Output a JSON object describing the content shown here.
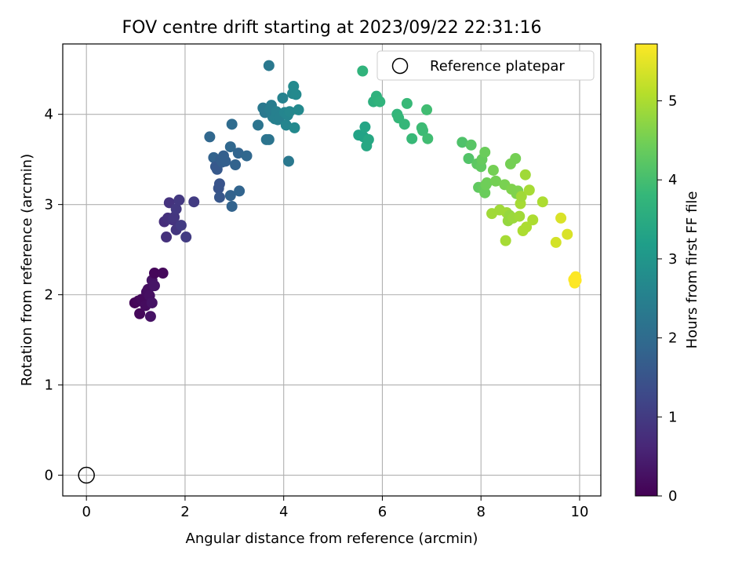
{
  "chart_data": {
    "type": "scatter",
    "title": "FOV centre drift starting at 2023/09/22 22:31:16",
    "xlabel": "Angular distance from reference (arcmin)",
    "ylabel": "Rotation from reference (arcmin)",
    "xlim": [
      -0.48,
      10.43
    ],
    "ylim": [
      -0.23,
      4.78
    ],
    "x_ticks": [
      "0",
      "2",
      "4",
      "6",
      "8",
      "10"
    ],
    "y_ticks": [
      "0",
      "1",
      "2",
      "3",
      "4"
    ],
    "grid": true,
    "legend": {
      "placement": "top-right",
      "entries": [
        "Reference platepar"
      ]
    },
    "reference_point": {
      "name": "Reference platepar",
      "x": 0,
      "y": 0,
      "marker": "hollow-circle"
    },
    "colorbar": {
      "label": "Hours from first FF file",
      "range": [
        0,
        5.72
      ],
      "ticks": [
        "0",
        "1",
        "2",
        "3",
        "4",
        "5"
      ],
      "colormap": "viridis",
      "colors": [
        "#440154",
        "#482878",
        "#3e4989",
        "#31688e",
        "#26828e",
        "#1f9e89",
        "#35b779",
        "#6ece58",
        "#b5de2b",
        "#fde725"
      ]
    },
    "points": [
      {
        "x": 0.98,
        "y": 1.91,
        "t": 0.05
      },
      {
        "x": 1.05,
        "y": 1.93,
        "t": 0.1
      },
      {
        "x": 1.08,
        "y": 1.79,
        "t": 0.12
      },
      {
        "x": 1.12,
        "y": 1.95,
        "t": 0.15
      },
      {
        "x": 1.2,
        "y": 1.88,
        "t": 0.18
      },
      {
        "x": 1.22,
        "y": 2.03,
        "t": 0.2
      },
      {
        "x": 1.25,
        "y": 2.06,
        "t": 0.22
      },
      {
        "x": 1.28,
        "y": 1.99,
        "t": 0.25
      },
      {
        "x": 1.3,
        "y": 1.76,
        "t": 0.28
      },
      {
        "x": 1.33,
        "y": 1.91,
        "t": 0.3
      },
      {
        "x": 1.33,
        "y": 2.16,
        "t": 0.3
      },
      {
        "x": 1.38,
        "y": 2.1,
        "t": 0.32
      },
      {
        "x": 1.38,
        "y": 2.24,
        "t": 0.1
      },
      {
        "x": 1.55,
        "y": 2.24,
        "t": 0.12
      },
      {
        "x": 1.58,
        "y": 2.81,
        "t": 0.75
      },
      {
        "x": 1.62,
        "y": 2.64,
        "t": 0.8
      },
      {
        "x": 1.65,
        "y": 2.85,
        "t": 0.8
      },
      {
        "x": 1.68,
        "y": 3.02,
        "t": 0.85
      },
      {
        "x": 1.75,
        "y": 2.83,
        "t": 0.85
      },
      {
        "x": 1.78,
        "y": 2.86,
        "t": 0.9
      },
      {
        "x": 1.82,
        "y": 2.72,
        "t": 0.9
      },
      {
        "x": 1.82,
        "y": 2.95,
        "t": 0.95
      },
      {
        "x": 1.88,
        "y": 3.05,
        "t": 0.95
      },
      {
        "x": 1.92,
        "y": 2.77,
        "t": 1.0
      },
      {
        "x": 2.02,
        "y": 2.64,
        "t": 1.0
      },
      {
        "x": 2.18,
        "y": 3.03,
        "t": 1.0
      },
      {
        "x": 2.5,
        "y": 3.75,
        "t": 1.9
      },
      {
        "x": 2.58,
        "y": 3.52,
        "t": 1.8
      },
      {
        "x": 2.62,
        "y": 3.42,
        "t": 1.6
      },
      {
        "x": 2.65,
        "y": 3.39,
        "t": 1.6
      },
      {
        "x": 2.68,
        "y": 3.18,
        "t": 1.5
      },
      {
        "x": 2.7,
        "y": 3.23,
        "t": 1.5
      },
      {
        "x": 2.7,
        "y": 3.08,
        "t": 1.55
      },
      {
        "x": 2.72,
        "y": 3.5,
        "t": 1.7
      },
      {
        "x": 2.75,
        "y": 3.47,
        "t": 1.7
      },
      {
        "x": 2.78,
        "y": 3.54,
        "t": 1.75
      },
      {
        "x": 2.82,
        "y": 3.48,
        "t": 1.75
      },
      {
        "x": 2.92,
        "y": 3.64,
        "t": 1.9
      },
      {
        "x": 2.92,
        "y": 3.1,
        "t": 1.8
      },
      {
        "x": 2.95,
        "y": 3.89,
        "t": 2.0
      },
      {
        "x": 2.95,
        "y": 2.98,
        "t": 1.8
      },
      {
        "x": 3.02,
        "y": 3.44,
        "t": 1.8
      },
      {
        "x": 3.08,
        "y": 3.57,
        "t": 1.85
      },
      {
        "x": 3.1,
        "y": 3.15,
        "t": 1.85
      },
      {
        "x": 3.25,
        "y": 3.54,
        "t": 1.9
      },
      {
        "x": 3.48,
        "y": 3.88,
        "t": 2.2
      },
      {
        "x": 3.58,
        "y": 4.07,
        "t": 2.3
      },
      {
        "x": 3.62,
        "y": 4.02,
        "t": 2.3
      },
      {
        "x": 3.65,
        "y": 3.72,
        "t": 2.2
      },
      {
        "x": 3.7,
        "y": 4.54,
        "t": 2.3
      },
      {
        "x": 3.7,
        "y": 3.72,
        "t": 2.2
      },
      {
        "x": 3.72,
        "y": 4.05,
        "t": 2.4
      },
      {
        "x": 3.75,
        "y": 4.1,
        "t": 2.4
      },
      {
        "x": 3.78,
        "y": 3.97,
        "t": 2.4
      },
      {
        "x": 3.82,
        "y": 3.95,
        "t": 2.5
      },
      {
        "x": 3.85,
        "y": 4.03,
        "t": 2.5
      },
      {
        "x": 3.88,
        "y": 3.94,
        "t": 2.5
      },
      {
        "x": 3.92,
        "y": 3.97,
        "t": 2.5
      },
      {
        "x": 3.98,
        "y": 4.18,
        "t": 2.55
      },
      {
        "x": 4.02,
        "y": 4.02,
        "t": 2.6
      },
      {
        "x": 4.05,
        "y": 3.88,
        "t": 2.6
      },
      {
        "x": 4.08,
        "y": 3.99,
        "t": 2.6
      },
      {
        "x": 4.1,
        "y": 3.48,
        "t": 2.3
      },
      {
        "x": 4.12,
        "y": 4.03,
        "t": 2.65
      },
      {
        "x": 4.18,
        "y": 4.23,
        "t": 2.65
      },
      {
        "x": 4.2,
        "y": 4.31,
        "t": 2.7
      },
      {
        "x": 4.22,
        "y": 3.85,
        "t": 2.7
      },
      {
        "x": 4.25,
        "y": 4.22,
        "t": 2.7
      },
      {
        "x": 4.3,
        "y": 4.05,
        "t": 2.7
      },
      {
        "x": 5.52,
        "y": 3.77,
        "t": 3.3
      },
      {
        "x": 5.6,
        "y": 4.48,
        "t": 3.7
      },
      {
        "x": 5.62,
        "y": 3.75,
        "t": 3.3
      },
      {
        "x": 5.65,
        "y": 3.86,
        "t": 3.35
      },
      {
        "x": 5.68,
        "y": 3.65,
        "t": 3.4
      },
      {
        "x": 5.72,
        "y": 3.72,
        "t": 3.4
      },
      {
        "x": 5.82,
        "y": 4.14,
        "t": 3.6
      },
      {
        "x": 5.88,
        "y": 4.2,
        "t": 3.65
      },
      {
        "x": 5.92,
        "y": 4.15,
        "t": 3.65
      },
      {
        "x": 5.95,
        "y": 4.14,
        "t": 3.7
      },
      {
        "x": 6.3,
        "y": 4.0,
        "t": 3.75
      },
      {
        "x": 6.33,
        "y": 3.96,
        "t": 3.8
      },
      {
        "x": 6.45,
        "y": 3.89,
        "t": 3.8
      },
      {
        "x": 6.5,
        "y": 4.12,
        "t": 3.85
      },
      {
        "x": 6.6,
        "y": 3.73,
        "t": 3.85
      },
      {
        "x": 6.8,
        "y": 3.85,
        "t": 3.9
      },
      {
        "x": 6.82,
        "y": 3.82,
        "t": 3.9
      },
      {
        "x": 6.9,
        "y": 4.05,
        "t": 3.95
      },
      {
        "x": 6.92,
        "y": 3.73,
        "t": 3.95
      },
      {
        "x": 7.62,
        "y": 3.69,
        "t": 4.1
      },
      {
        "x": 7.75,
        "y": 3.51,
        "t": 4.15
      },
      {
        "x": 7.8,
        "y": 3.66,
        "t": 4.2
      },
      {
        "x": 7.92,
        "y": 3.45,
        "t": 4.25
      },
      {
        "x": 7.95,
        "y": 3.19,
        "t": 4.3
      },
      {
        "x": 8.0,
        "y": 3.42,
        "t": 4.3
      },
      {
        "x": 8.02,
        "y": 3.5,
        "t": 4.35
      },
      {
        "x": 8.05,
        "y": 3.17,
        "t": 4.35
      },
      {
        "x": 8.08,
        "y": 3.58,
        "t": 4.4
      },
      {
        "x": 8.08,
        "y": 3.13,
        "t": 4.4
      },
      {
        "x": 8.1,
        "y": 3.22,
        "t": 4.45
      },
      {
        "x": 8.12,
        "y": 3.24,
        "t": 4.45
      },
      {
        "x": 8.22,
        "y": 2.9,
        "t": 4.9
      },
      {
        "x": 8.25,
        "y": 3.38,
        "t": 4.5
      },
      {
        "x": 8.3,
        "y": 3.26,
        "t": 4.5
      },
      {
        "x": 8.38,
        "y": 2.94,
        "t": 4.9
      },
      {
        "x": 8.48,
        "y": 3.22,
        "t": 4.55
      },
      {
        "x": 8.5,
        "y": 2.6,
        "t": 4.95
      },
      {
        "x": 8.52,
        "y": 2.91,
        "t": 4.9
      },
      {
        "x": 8.55,
        "y": 2.82,
        "t": 4.8
      },
      {
        "x": 8.58,
        "y": 2.88,
        "t": 4.8
      },
      {
        "x": 8.6,
        "y": 3.45,
        "t": 4.5
      },
      {
        "x": 8.62,
        "y": 3.17,
        "t": 4.6
      },
      {
        "x": 8.65,
        "y": 2.85,
        "t": 4.85
      },
      {
        "x": 8.7,
        "y": 3.51,
        "t": 4.5
      },
      {
        "x": 8.72,
        "y": 3.12,
        "t": 4.6
      },
      {
        "x": 8.75,
        "y": 3.15,
        "t": 4.6
      },
      {
        "x": 8.78,
        "y": 2.87,
        "t": 4.9
      },
      {
        "x": 8.8,
        "y": 3.01,
        "t": 4.95
      },
      {
        "x": 8.82,
        "y": 3.09,
        "t": 4.9
      },
      {
        "x": 8.85,
        "y": 2.71,
        "t": 5.0
      },
      {
        "x": 8.9,
        "y": 3.33,
        "t": 4.9
      },
      {
        "x": 8.92,
        "y": 2.75,
        "t": 5.0
      },
      {
        "x": 8.98,
        "y": 3.16,
        "t": 4.95
      },
      {
        "x": 9.05,
        "y": 2.83,
        "t": 5.0
      },
      {
        "x": 9.25,
        "y": 3.03,
        "t": 5.0
      },
      {
        "x": 9.52,
        "y": 2.58,
        "t": 5.35
      },
      {
        "x": 9.62,
        "y": 2.85,
        "t": 5.4
      },
      {
        "x": 9.75,
        "y": 2.67,
        "t": 5.4
      },
      {
        "x": 9.88,
        "y": 2.17,
        "t": 5.7
      },
      {
        "x": 9.9,
        "y": 2.13,
        "t": 5.7
      },
      {
        "x": 9.92,
        "y": 2.2,
        "t": 5.7
      },
      {
        "x": 9.93,
        "y": 2.16,
        "t": 5.72
      }
    ]
  }
}
